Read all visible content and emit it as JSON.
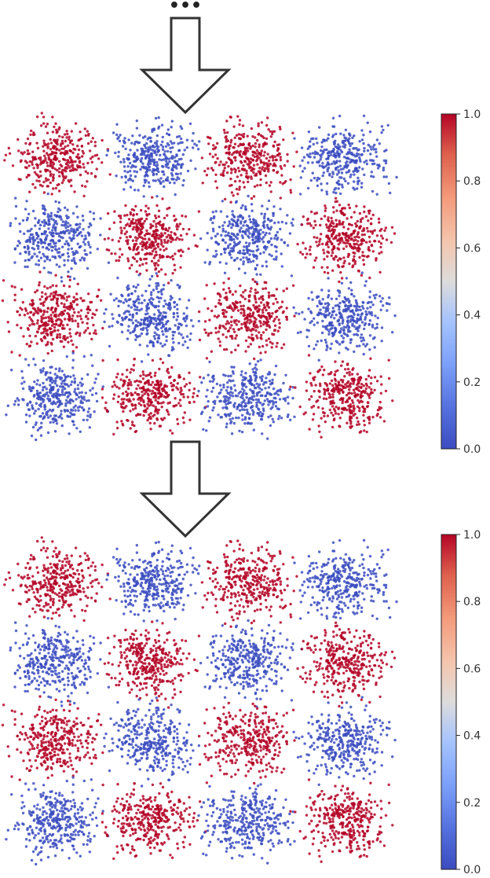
{
  "top_ellipsis": "•••",
  "arrow_style": {
    "stroke": "#333333",
    "fill": "#ffffff"
  },
  "colormap": {
    "name": "coolwarm",
    "low": "#3b4cc0",
    "mid": "#dddddd",
    "high": "#b40426"
  },
  "chart_data": [
    {
      "type": "scatter",
      "description_of_pattern": "checkerboard",
      "grid": false,
      "x_cells": 4,
      "y_cells": 4,
      "color_pattern": [
        [
          1,
          0,
          1,
          0
        ],
        [
          0,
          1,
          0,
          1
        ],
        [
          1,
          0,
          1,
          0
        ],
        [
          0,
          1,
          0,
          1
        ]
      ],
      "colorbar": {
        "range": [
          0.0,
          1.0
        ],
        "ticks": [
          "0.0",
          "0.2",
          "0.4",
          "0.6",
          "0.8",
          "1.0"
        ],
        "tick_values": [
          0.0,
          0.2,
          0.4,
          0.6,
          0.8,
          1.0
        ]
      }
    },
    {
      "type": "scatter",
      "description_of_pattern": "checkerboard",
      "grid": false,
      "x_cells": 4,
      "y_cells": 4,
      "color_pattern": [
        [
          1,
          0,
          1,
          0
        ],
        [
          0,
          1,
          0,
          1
        ],
        [
          1,
          0,
          1,
          0
        ],
        [
          0,
          1,
          0,
          1
        ]
      ],
      "colorbar": {
        "range": [
          0.0,
          1.0
        ],
        "ticks": [
          "0.0",
          "0.2",
          "0.4",
          "0.6",
          "0.8",
          "1.0"
        ],
        "tick_values": [
          0.0,
          0.2,
          0.4,
          0.6,
          0.8,
          1.0
        ]
      }
    }
  ]
}
